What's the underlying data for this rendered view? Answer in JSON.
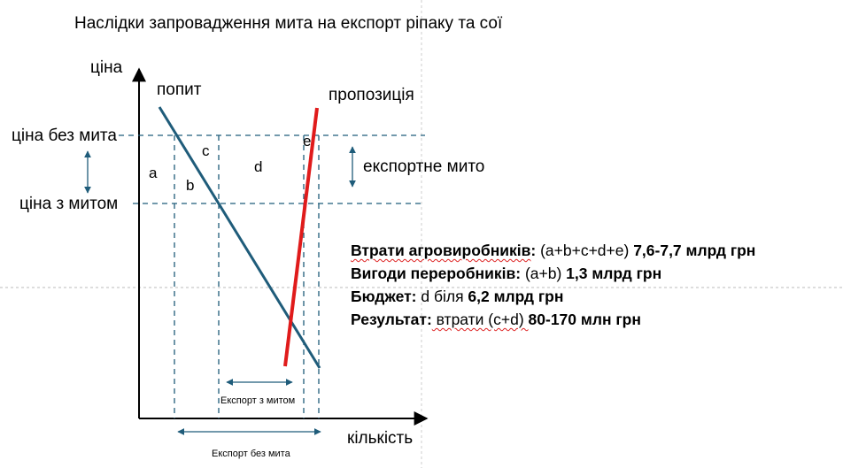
{
  "title": "Наслідки запровадження мита на експорт ріпаку та сої",
  "axes": {
    "y_label": "ціна",
    "x_label": "кількість"
  },
  "curves": {
    "demand_label": "попит",
    "supply_label": "пропозиція"
  },
  "price_levels": {
    "no_duty": "ціна без мита",
    "with_duty": "ціна з митом"
  },
  "areas": {
    "a": "a",
    "b": "b",
    "c": "c",
    "d": "d",
    "e": "e"
  },
  "duty_label": "експортне мито",
  "export_labels": {
    "with_duty": "Експорт з митом",
    "without_duty": "Експорт без  мита"
  },
  "results": [
    {
      "key": "Втрати агровиробників",
      "sep": ":",
      "formula": " (a+b+c+d+e) ",
      "value": "7,6-7,7 млрд грн"
    },
    {
      "key": "Вигоди переробників",
      "sep": ":",
      "formula": " (a+b) ",
      "value": "1,3 млрд грн"
    },
    {
      "key": "Бюджет",
      "sep": ":",
      "formula": " d біля ",
      "value": "6,2 млрд грн"
    },
    {
      "key": "Результат",
      "sep": ":",
      "formula": " втрати (c+d) ",
      "value": "80-170 млн грн"
    }
  ],
  "colors": {
    "demand": "#1f5c7a",
    "supply": "#e01b1b",
    "axes": "#000000",
    "dashed": "#1f5c7a"
  }
}
